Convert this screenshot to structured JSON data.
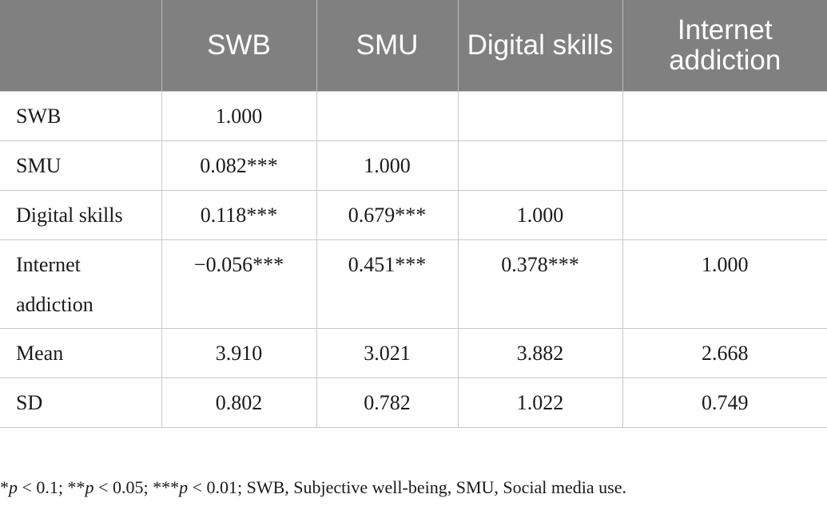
{
  "table": {
    "headers": [
      "",
      "SWB",
      "SMU",
      "Digital skills",
      "Internet addiction"
    ],
    "rows": [
      {
        "label": "SWB",
        "cells": [
          "1.000",
          "",
          "",
          ""
        ]
      },
      {
        "label": "SMU",
        "cells": [
          "0.082***",
          "1.000",
          "",
          ""
        ]
      },
      {
        "label": "Digital skills",
        "cells": [
          "0.118***",
          "0.679***",
          "1.000",
          ""
        ]
      },
      {
        "label": "Internet addiction",
        "cells": [
          "−0.056***",
          "0.451***",
          "0.378***",
          "1.000"
        ]
      },
      {
        "label": "Mean",
        "cells": [
          "3.910",
          "3.021",
          "3.882",
          "2.668"
        ]
      },
      {
        "label": "SD",
        "cells": [
          "0.802",
          "0.782",
          "1.022",
          "0.749"
        ]
      }
    ]
  },
  "footnote": {
    "p1_stars": "*",
    "p_symbol": "p",
    "p1_rest": " < 0.1; ",
    "p2_stars": "**",
    "p2_rest": " < 0.05; ",
    "p3_stars": "***",
    "p3_rest": " < 0.01; SWB, Subjective well-being, SMU, Social media use."
  }
}
